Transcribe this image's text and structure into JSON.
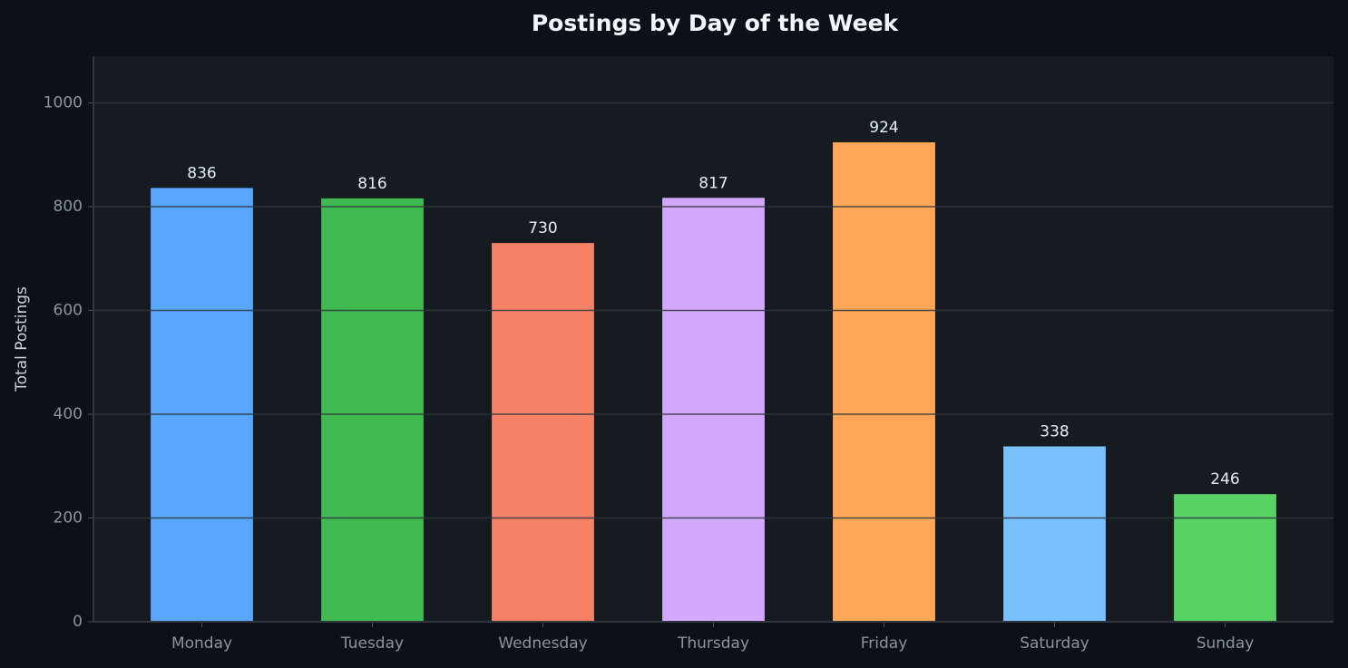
{
  "chart_data": {
    "type": "bar",
    "title": "Postings by Day of the Week",
    "y_label": "Total Postings",
    "categories": [
      "Monday",
      "Tuesday",
      "Wednesday",
      "Thursday",
      "Friday",
      "Saturday",
      "Sunday"
    ],
    "values": [
      836,
      816,
      730,
      817,
      924,
      338,
      246
    ],
    "colors": [
      "#58a6ff",
      "#3fb950",
      "#f78166",
      "#d2a8ff",
      "#ffa657",
      "#79c0ff",
      "#56d364"
    ],
    "ylim": [
      0,
      1090
    ],
    "yticks": [
      0,
      200,
      400,
      600,
      800,
      1000
    ],
    "grid": true
  }
}
